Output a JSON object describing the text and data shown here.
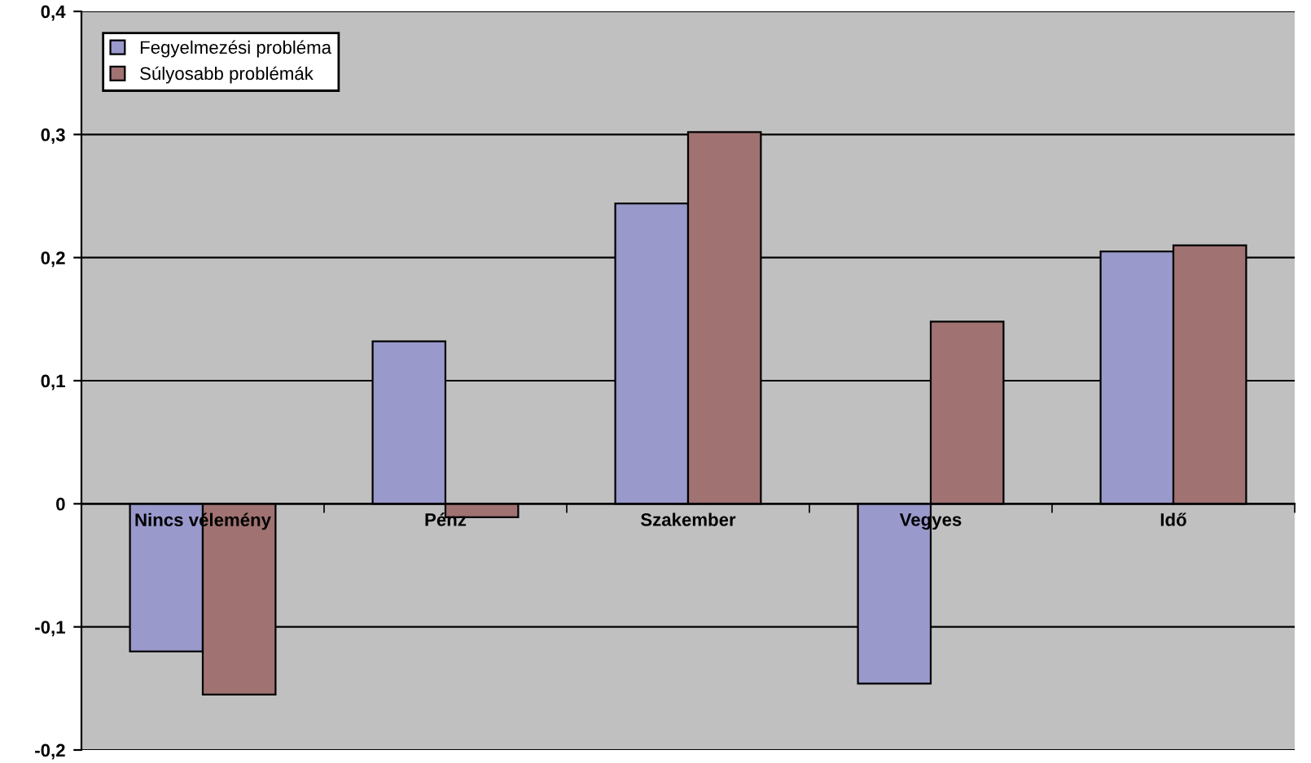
{
  "chart_data": {
    "type": "bar",
    "categories": [
      "Nincs vélemény",
      "Pénz",
      "Szakember",
      "Vegyes",
      "Idő"
    ],
    "series": [
      {
        "name": "Fegyelmezési probléma",
        "color": "#9999cc",
        "values": [
          -0.12,
          0.132,
          0.244,
          -0.146,
          0.205
        ]
      },
      {
        "name": "Súlyosabb problémák",
        "color": "#a07272",
        "values": [
          -0.155,
          -0.011,
          0.302,
          0.148,
          0.21
        ]
      }
    ],
    "ylim": [
      -0.2,
      0.4
    ],
    "yticks": [
      {
        "value": -0.2,
        "label": "-0,2"
      },
      {
        "value": -0.1,
        "label": "-0,1"
      },
      {
        "value": 0,
        "label": "0"
      },
      {
        "value": 0.1,
        "label": "0,1"
      },
      {
        "value": 0.2,
        "label": "0,2"
      },
      {
        "value": 0.3,
        "label": "0,3"
      },
      {
        "value": 0.4,
        "label": "0,4"
      }
    ],
    "grid": "y",
    "legend": "top left"
  }
}
